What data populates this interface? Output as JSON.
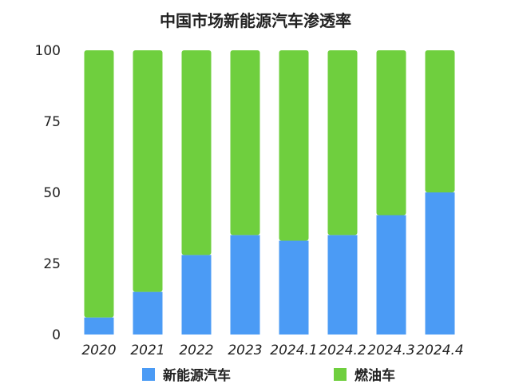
{
  "chart_data": {
    "type": "bar",
    "stacked": true,
    "title": "中国市场新能源汽车渗透率",
    "xlabel": "",
    "ylabel": "",
    "categories": [
      "2020",
      "2021",
      "2022",
      "2023",
      "2024.1",
      "2024.2",
      "2024.3",
      "2024.4"
    ],
    "series": [
      {
        "name": "新能源汽车",
        "color": "#4b9bf5",
        "values": [
          6,
          15,
          28,
          35,
          33,
          35,
          42,
          50
        ]
      },
      {
        "name": "燃油车",
        "color": "#6fcf3e",
        "values": [
          94,
          85,
          72,
          65,
          67,
          65,
          58,
          50
        ]
      }
    ],
    "ylim": [
      0,
      100
    ],
    "yticks": [
      0,
      25,
      50,
      75,
      100
    ],
    "grid": false,
    "legend_position": "bottom"
  }
}
